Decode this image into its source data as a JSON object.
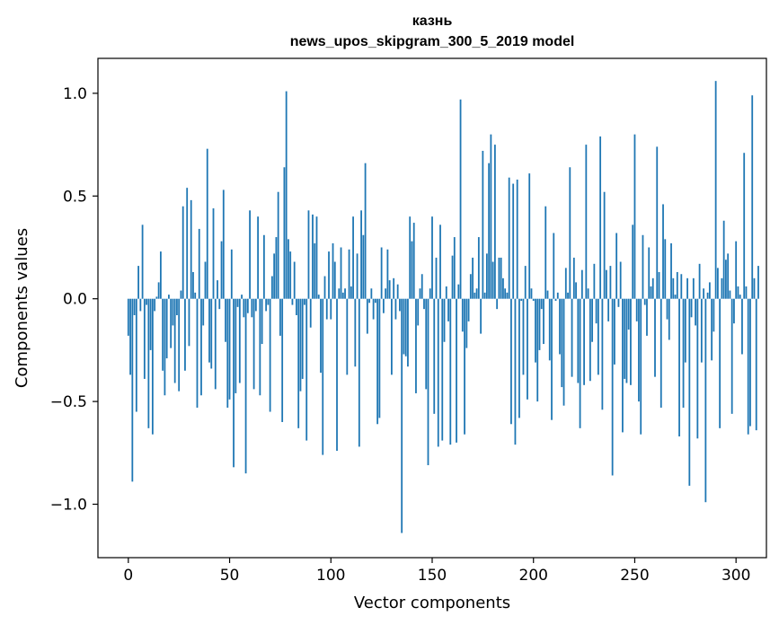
{
  "chart_data": {
    "type": "bar",
    "title": "казнь",
    "subtitle": "news_upos_skipgram_300_5_2019 model",
    "xlabel": "Vector components",
    "ylabel": "Components values",
    "xlim": [
      -15,
      315
    ],
    "ylim": [
      -1.26,
      1.17
    ],
    "xticks": [
      0,
      50,
      100,
      150,
      200,
      250,
      300
    ],
    "xtick_labels": [
      "0",
      "50",
      "100",
      "150",
      "200",
      "250",
      "300"
    ],
    "yticks": [
      -1.0,
      -0.5,
      0.0,
      0.5,
      1.0
    ],
    "ytick_labels": [
      "−1.0",
      "−0.5",
      "0.0",
      "0.5",
      "1.0"
    ],
    "bar_color": "#1f77b4",
    "grid": false,
    "values": [
      -0.18,
      -0.37,
      -0.89,
      -0.08,
      -0.55,
      0.16,
      -0.06,
      0.36,
      -0.39,
      -0.03,
      -0.63,
      -0.25,
      -0.66,
      -0.06,
      0.01,
      0.08,
      0.23,
      -0.35,
      -0.47,
      -0.29,
      0.02,
      -0.24,
      -0.13,
      -0.41,
      -0.08,
      -0.45,
      0.04,
      0.45,
      -0.35,
      0.54,
      -0.23,
      0.48,
      0.13,
      0.03,
      -0.53,
      0.34,
      -0.47,
      -0.13,
      0.18,
      0.73,
      -0.31,
      -0.34,
      0.44,
      -0.44,
      0.09,
      -0.05,
      0.28,
      0.53,
      -0.21,
      -0.53,
      -0.49,
      0.24,
      -0.82,
      -0.46,
      -0.04,
      -0.41,
      0.02,
      -0.09,
      -0.85,
      -0.07,
      0.43,
      -0.09,
      -0.44,
      -0.06,
      0.4,
      -0.47,
      -0.22,
      0.31,
      -0.06,
      -0.03,
      -0.55,
      0.11,
      0.22,
      0.3,
      0.52,
      -0.18,
      -0.6,
      0.64,
      1.01,
      0.29,
      0.23,
      -0.03,
      0.18,
      -0.08,
      -0.63,
      -0.45,
      -0.39,
      -0.03,
      -0.69,
      0.43,
      -0.14,
      0.41,
      0.27,
      0.4,
      0.02,
      -0.36,
      -0.76,
      0.11,
      -0.1,
      0.23,
      -0.1,
      0.27,
      0.18,
      -0.74,
      0.05,
      0.25,
      0.03,
      0.05,
      -0.37,
      0.24,
      0.06,
      0.4,
      -0.33,
      0.22,
      -0.72,
      0.43,
      0.31,
      0.66,
      -0.17,
      -0.02,
      0.05,
      -0.1,
      -0.02,
      -0.61,
      -0.58,
      0.25,
      -0.07,
      0.05,
      0.24,
      0.09,
      -0.37,
      0.1,
      -0.1,
      0.07,
      -0.06,
      -1.14,
      -0.27,
      -0.28,
      -0.33,
      0.4,
      0.28,
      0.37,
      -0.46,
      -0.13,
      0.05,
      0.12,
      -0.05,
      -0.44,
      -0.81,
      0.05,
      0.4,
      -0.56,
      0.2,
      -0.72,
      0.36,
      -0.69,
      -0.21,
      0.06,
      -0.11,
      -0.71,
      0.21,
      0.3,
      -0.7,
      0.07,
      0.97,
      -0.16,
      -0.66,
      -0.24,
      -0.11,
      0.12,
      0.2,
      0.03,
      0.05,
      0.3,
      -0.17,
      0.72,
      0.03,
      0.22,
      0.66,
      0.8,
      0.18,
      0.75,
      -0.05,
      0.2,
      0.2,
      0.1,
      0.05,
      0.03,
      0.59,
      -0.61,
      0.56,
      -0.71,
      0.58,
      -0.58,
      -0.01,
      -0.37,
      0.16,
      -0.49,
      0.61,
      0.05,
      -0.01,
      -0.31,
      -0.5,
      -0.25,
      -0.05,
      -0.22,
      0.45,
      0.04,
      -0.3,
      -0.59,
      0.32,
      -0.01,
      0.03,
      -0.27,
      -0.43,
      -0.52,
      0.15,
      0.03,
      0.64,
      -0.38,
      0.2,
      0.08,
      -0.41,
      -0.63,
      0.14,
      -0.42,
      0.75,
      0.05,
      -0.4,
      -0.21,
      0.17,
      -0.12,
      -0.37,
      0.79,
      -0.54,
      0.52,
      0.14,
      -0.11,
      0.16,
      -0.86,
      -0.32,
      0.32,
      -0.04,
      0.18,
      -0.65,
      -0.39,
      -0.41,
      -0.15,
      -0.42,
      0.36,
      0.8,
      -0.11,
      -0.5,
      -0.66,
      0.31,
      -0.03,
      -0.18,
      0.25,
      0.06,
      0.1,
      -0.38,
      0.74,
      0.13,
      -0.53,
      0.46,
      0.29,
      -0.1,
      -0.2,
      0.27,
      0.1,
      0.02,
      0.13,
      -0.67,
      0.12,
      -0.53,
      -0.31,
      0.1,
      -0.91,
      -0.09,
      0.1,
      -0.13,
      -0.68,
      0.17,
      -0.31,
      0.05,
      -0.99,
      0.03,
      0.08,
      -0.3,
      -0.16,
      1.06,
      0.15,
      -0.63,
      0.1,
      0.38,
      0.19,
      0.22,
      0.04,
      -0.56,
      -0.12,
      0.28,
      0.06,
      0.02,
      -0.27,
      0.71,
      0.06,
      -0.66,
      -0.62,
      0.99,
      0.1,
      -0.64,
      0.16
    ]
  }
}
